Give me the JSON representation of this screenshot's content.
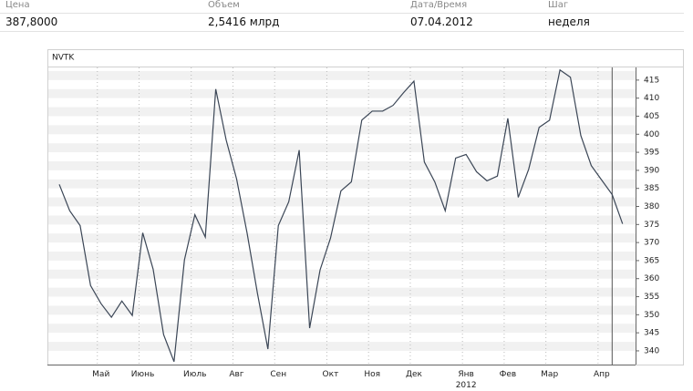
{
  "header": {
    "columns": [
      "Цена",
      "Объем",
      "Дата/Время",
      "Шаг"
    ],
    "values": [
      "387,8000",
      "2,5416 млрд",
      "07.04.2012",
      "неделя"
    ]
  },
  "chart_data": {
    "type": "line",
    "title": "NVTK",
    "categories": [
      null,
      null,
      null,
      null,
      "Май",
      null,
      null,
      null,
      "Июнь",
      null,
      null,
      null,
      null,
      "Июль",
      null,
      null,
      null,
      "Авг",
      null,
      null,
      null,
      "Сен",
      null,
      null,
      null,
      null,
      "Окт",
      null,
      null,
      null,
      "Ноя",
      null,
      null,
      null,
      "Дек",
      null,
      null,
      null,
      null,
      "Янв\n2012",
      null,
      null,
      null,
      "Фев",
      null,
      null,
      null,
      "Мар",
      null,
      null,
      null,
      null,
      "Апр",
      null,
      null
    ],
    "series": [
      {
        "name": "NVTK",
        "color": "#3b4656",
        "values": [
          386.1,
          378.8,
          374.7,
          358.1,
          353.1,
          349.3,
          353.8,
          349.8,
          372.7,
          362.6,
          344.5,
          337.0,
          365.2,
          377.7,
          371.5,
          412.5,
          398.4,
          387.6,
          372.7,
          355.9,
          340.5,
          374.7,
          381.3,
          395.6,
          346.3,
          362.4,
          371.2,
          384.3,
          386.8,
          403.9,
          406.4,
          406.4,
          408.0,
          411.5,
          414.7,
          392.3,
          386.8,
          378.8,
          393.4,
          394.4,
          389.6,
          387.1,
          388.4,
          404.4,
          382.5,
          390.3,
          401.9,
          403.9,
          417.8,
          415.8,
          399.6,
          391.3,
          387.3,
          383.3,
          375.2
        ]
      }
    ],
    "ylim": [
      336.2,
      418.5
    ],
    "yticks": [
      340,
      345,
      350,
      355,
      360,
      365,
      370,
      375,
      380,
      385,
      390,
      395,
      400,
      405,
      410,
      415
    ],
    "grid": true
  }
}
